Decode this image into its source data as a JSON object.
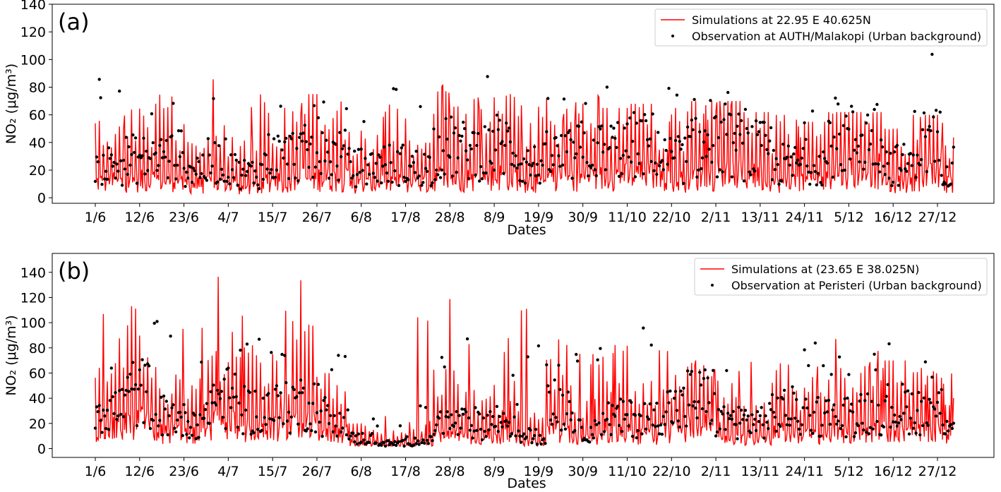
{
  "chart_data": [
    {
      "type": "line",
      "panel_label": "(a)",
      "xlabel": "Dates",
      "ylabel": "NO₂ (μg/m³)",
      "ylim": [
        -4,
        140
      ],
      "yticks": [
        0,
        20,
        40,
        60,
        80,
        100,
        120,
        140
      ],
      "xticks": [
        "1/6",
        "12/6",
        "23/6",
        "4/7",
        "15/7",
        "26/7",
        "6/8",
        "17/8",
        "28/8",
        "8/9",
        "19/9",
        "30/9",
        "11/10",
        "22/10",
        "2/11",
        "13/11",
        "24/11",
        "5/12",
        "16/12",
        "27/12"
      ],
      "x_range_days": [
        0,
        213
      ],
      "legend_position": "top-right",
      "grid": false,
      "series": [
        {
          "name": "Simulations  at 22.95 E 40.625N",
          "kind": "line",
          "color": "#ff0000",
          "weekly_mean": [
            22,
            24,
            26,
            18,
            20,
            14,
            24,
            28,
            26,
            18,
            22,
            20,
            28,
            26,
            30,
            22,
            26,
            28,
            30,
            32,
            24,
            30,
            34,
            30,
            22,
            24,
            40,
            38,
            20,
            30,
            20
          ],
          "weekly_max": [
            75,
            70,
            80,
            60,
            92,
            80,
            77,
            75,
            72,
            60,
            68,
            72,
            90,
            80,
            75,
            70,
            72,
            75,
            65,
            68,
            65,
            70,
            70,
            62,
            60,
            55,
            62,
            62,
            50,
            60,
            58
          ]
        },
        {
          "name": "Observation at AUTH/Malakopi (Urban background)",
          "kind": "scatter",
          "color": "#000000",
          "weekly_mean": [
            24,
            28,
            30,
            22,
            26,
            18,
            30,
            32,
            30,
            22,
            24,
            22,
            36,
            34,
            38,
            24,
            30,
            34,
            36,
            38,
            28,
            36,
            38,
            34,
            24,
            26,
            42,
            44,
            24,
            40,
            24
          ],
          "weekly_max": [
            86,
            82,
            78,
            64,
            79,
            82,
            84,
            76,
            80,
            72,
            84,
            78,
            97,
            94,
            98,
            66,
            74,
            82,
            84,
            86,
            80,
            86,
            84,
            82,
            58,
            70,
            82,
            84,
            68,
            106,
            78
          ]
        }
      ]
    },
    {
      "type": "line",
      "panel_label": "(b)",
      "xlabel": "Dates",
      "ylabel": "NO₂ (μg/m³)",
      "ylim": [
        -7,
        155
      ],
      "yticks": [
        0,
        20,
        40,
        60,
        80,
        100,
        120,
        140
      ],
      "xticks": [
        "1/6",
        "12/6",
        "23/6",
        "4/7",
        "15/7",
        "26/7",
        "6/8",
        "17/8",
        "28/8",
        "8/9",
        "19/9",
        "30/9",
        "11/10",
        "22/10",
        "2/11",
        "13/11",
        "24/11",
        "5/12",
        "16/12",
        "27/12"
      ],
      "x_range_days": [
        0,
        213
      ],
      "legend_position": "top-right",
      "grid": false,
      "series": [
        {
          "name": "Simulations  at  (23.65 E 38.025N)",
          "kind": "line",
          "color": "#ff0000",
          "weekly_mean": [
            30,
            40,
            24,
            20,
            36,
            28,
            30,
            34,
            24,
            8,
            5,
            8,
            22,
            18,
            18,
            10,
            30,
            14,
            28,
            20,
            28,
            34,
            14,
            16,
            24,
            20,
            22,
            26,
            30,
            24,
            20
          ],
          "weekly_max": [
            112,
            123,
            104,
            103,
            146,
            110,
            128,
            148,
            60,
            20,
            30,
            115,
            120,
            95,
            90,
            124,
            96,
            80,
            85,
            99,
            90,
            70,
            65,
            75,
            78,
            80,
            90,
            80,
            70,
            68,
            60
          ]
        },
        {
          "name": "Observation at Peristeri (Urban background)",
          "kind": "scatter",
          "color": "#000000",
          "weekly_mean": [
            32,
            44,
            26,
            22,
            40,
            30,
            32,
            36,
            26,
            8,
            4,
            6,
            20,
            20,
            22,
            10,
            34,
            14,
            24,
            24,
            32,
            40,
            22,
            22,
            30,
            26,
            26,
            30,
            32,
            30,
            24
          ],
          "weekly_max": [
            84,
            119,
            101,
            85,
            118,
            90,
            85,
            90,
            75,
            30,
            20,
            40,
            80,
            95,
            72,
            93,
            80,
            84,
            83,
            99,
            88,
            84,
            76,
            78,
            74,
            86,
            74,
            78,
            84,
            70,
            60
          ]
        }
      ]
    }
  ]
}
